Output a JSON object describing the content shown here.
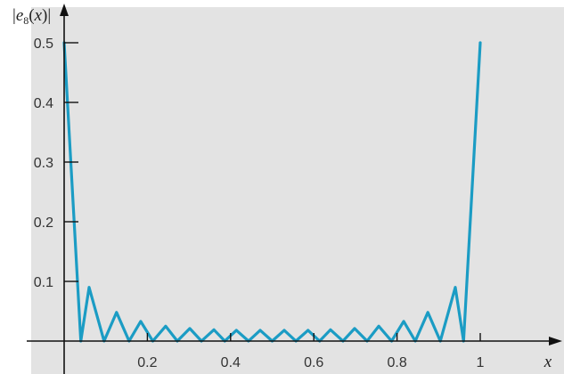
{
  "chart_data": {
    "type": "line",
    "title": "",
    "ylabel_parts": {
      "bar_left": "|",
      "e": "e",
      "sub": "8",
      "open": "(",
      "x": "x",
      "close": ")",
      "bar_right": "|"
    },
    "xlabel": "x",
    "xlim": [
      0,
      1.17
    ],
    "ylim": [
      -0.018,
      0.52
    ],
    "x_ticks": [
      0.2,
      0.4,
      0.6,
      0.8,
      1
    ],
    "x_tick_labels": [
      "0.2",
      "0.4",
      "0.6",
      "0.8",
      "1"
    ],
    "y_ticks": [
      0.1,
      0.2,
      0.3,
      0.4,
      0.5
    ],
    "y_tick_labels": [
      "0.1",
      "0.2",
      "0.3",
      "0.4",
      "0.5"
    ],
    "grid": false,
    "background_color": "#e3e3e3",
    "line_color": "#1b9cc4",
    "series": [
      {
        "name": "",
        "x": [
          0.0,
          0.04,
          0.06,
          0.096,
          0.126,
          0.156,
          0.184,
          0.213,
          0.244,
          0.272,
          0.302,
          0.33,
          0.36,
          0.386,
          0.414,
          0.443,
          0.471,
          0.5,
          0.529,
          0.557,
          0.586,
          0.614,
          0.64,
          0.67,
          0.698,
          0.728,
          0.756,
          0.787,
          0.816,
          0.844,
          0.874,
          0.904,
          0.94,
          0.96,
          1.0
        ],
        "y": [
          0.5,
          0.0,
          0.09,
          0.0,
          0.048,
          0.0,
          0.033,
          0.0,
          0.025,
          0.0,
          0.021,
          0.0,
          0.019,
          0.0,
          0.018,
          0.0,
          0.018,
          0.0,
          0.018,
          0.0,
          0.018,
          0.0,
          0.019,
          0.0,
          0.021,
          0.0,
          0.025,
          0.0,
          0.033,
          0.0,
          0.048,
          0.0,
          0.09,
          0.0,
          0.5
        ]
      }
    ]
  }
}
